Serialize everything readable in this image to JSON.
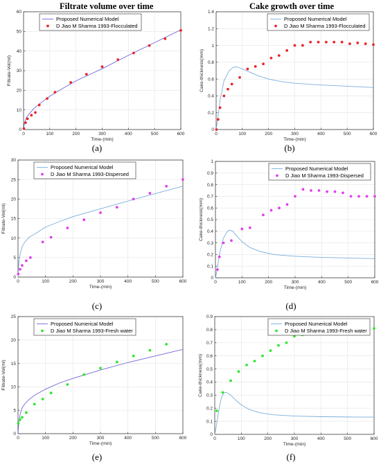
{
  "titles": {
    "left": "Filtrate volume over time",
    "right": "Cake growth over time"
  },
  "colors": {
    "model_line_blue": "#7aaedc",
    "model_line_purple": "#6f65d6",
    "flocculated": "#e8262b",
    "dispersed": "#e040ec",
    "fresh_water": "#2ee82e"
  },
  "chart_data": [
    {
      "id": "a",
      "type": "line",
      "caption": "(a)",
      "xlabel": "Time-(min)",
      "ylabel": "Filtrate-Vol(ml)",
      "xlim": [
        0,
        600
      ],
      "ylim": [
        0,
        60
      ],
      "xticks": [
        0,
        100,
        200,
        300,
        400,
        500,
        600
      ],
      "yticks": [
        0,
        10,
        20,
        30,
        40,
        50,
        60
      ],
      "legend": "top-left",
      "grid": true,
      "series": [
        {
          "name": "Proposed Numerical Model",
          "kind": "line",
          "color": "#6f65d6",
          "x": [
            0,
            3,
            10,
            20,
            40,
            60,
            100,
            150,
            200,
            300,
            400,
            500,
            600
          ],
          "y": [
            0,
            3.2,
            5.8,
            7.8,
            10.8,
            13.0,
            17.0,
            21.0,
            24.8,
            31.0,
            37.8,
            44.3,
            50.8
          ]
        },
        {
          "name": "D Jiao M Sharma 1993-Flocculated",
          "kind": "scatter",
          "color": "#e8262b",
          "x": [
            1,
            7.5,
            15,
            30,
            45,
            60,
            90,
            120,
            180,
            240,
            300,
            360,
            420,
            480,
            540,
            600
          ],
          "y": [
            0.5,
            3.5,
            5.5,
            7.3,
            8.7,
            12.5,
            15.8,
            19.0,
            24.0,
            28.2,
            32.0,
            35.6,
            39.0,
            42.8,
            46.3,
            50.5
          ]
        }
      ]
    },
    {
      "id": "b",
      "type": "line",
      "caption": "(b)",
      "xlabel": "Time-(min)",
      "ylabel": "Cake-thickness(mm)",
      "xlim": [
        0,
        600
      ],
      "ylim": [
        0,
        1.4
      ],
      "xticks": [
        0,
        100,
        200,
        300,
        400,
        500,
        600
      ],
      "yticks": [
        0,
        0.2,
        0.4,
        0.6,
        0.8,
        1,
        1.2,
        1.4
      ],
      "legend": "top-right",
      "grid": true,
      "series": [
        {
          "name": "Proposed Numerical Model",
          "kind": "line",
          "color": "#7aaedc",
          "x": [
            0,
            5,
            15,
            30,
            50,
            65,
            75,
            85,
            100,
            130,
            160,
            200,
            250,
            300,
            400,
            500,
            600
          ],
          "y": [
            0,
            0.1,
            0.35,
            0.58,
            0.7,
            0.74,
            0.745,
            0.74,
            0.72,
            0.68,
            0.64,
            0.6,
            0.57,
            0.55,
            0.53,
            0.515,
            0.5
          ]
        },
        {
          "name": "D Jiao M Sharma 1993-Flocculated",
          "kind": "scatter",
          "color": "#e8262b",
          "x": [
            1,
            7.5,
            15,
            30,
            45,
            60,
            90,
            120,
            150,
            180,
            210,
            240,
            270,
            300,
            330,
            360,
            390,
            420,
            450,
            480,
            510,
            540,
            570,
            600
          ],
          "y": [
            0.0,
            0.12,
            0.26,
            0.4,
            0.48,
            0.54,
            0.62,
            0.72,
            0.75,
            0.78,
            0.85,
            0.88,
            0.94,
            1.0,
            1.0,
            1.04,
            1.04,
            1.04,
            1.04,
            1.04,
            1.02,
            1.03,
            1.02,
            1.01
          ]
        }
      ]
    },
    {
      "id": "c",
      "type": "line",
      "caption": "(c)",
      "xlabel": "Time-(min)",
      "ylabel": "Filtrate-Vol(ml)",
      "xlim": [
        0,
        600
      ],
      "ylim": [
        0,
        30
      ],
      "xticks": [
        0,
        100,
        200,
        300,
        400,
        500,
        600
      ],
      "yticks": [
        0,
        5,
        10,
        15,
        20,
        25,
        30
      ],
      "legend": "top-left",
      "grid": true,
      "series": [
        {
          "name": "Proposed Numerical Model",
          "kind": "line",
          "color": "#7aaedc",
          "x": [
            0,
            3,
            8,
            15,
            25,
            40,
            60,
            100,
            150,
            200,
            300,
            400,
            500,
            600
          ],
          "y": [
            0,
            3.5,
            6.0,
            7.8,
            9.0,
            10.2,
            11.0,
            12.8,
            14.2,
            15.5,
            17.5,
            19.5,
            21.4,
            23.3
          ]
        },
        {
          "name": "D Jiao M Sharma 1993-Dispersed",
          "kind": "scatter",
          "color": "#e040ec",
          "x": [
            1,
            7.5,
            15,
            30,
            45,
            90,
            120,
            180,
            240,
            300,
            360,
            420,
            480,
            540,
            600
          ],
          "y": [
            0.8,
            2.0,
            3.0,
            4.2,
            5.0,
            9.0,
            10.2,
            12.6,
            14.7,
            16.5,
            17.9,
            20.0,
            21.5,
            23.3,
            25.0
          ]
        }
      ]
    },
    {
      "id": "d",
      "type": "line",
      "caption": "(d)",
      "xlabel": "Time-(min)",
      "ylabel": "Cake-thickness(mm)",
      "xlim": [
        0,
        600
      ],
      "ylim": [
        0,
        1
      ],
      "xticks": [
        0,
        100,
        200,
        300,
        400,
        500,
        600
      ],
      "yticks": [
        0,
        0.1,
        0.2,
        0.3,
        0.4,
        0.5,
        0.6,
        0.7,
        0.8,
        0.9,
        1
      ],
      "legend": "top-right",
      "grid": true,
      "series": [
        {
          "name": "Proposed Numerical Model",
          "kind": "line",
          "color": "#7aaedc",
          "x": [
            0,
            5,
            15,
            30,
            45,
            55,
            65,
            80,
            100,
            130,
            170,
            220,
            300,
            400,
            500,
            600
          ],
          "y": [
            0,
            0.05,
            0.2,
            0.34,
            0.4,
            0.41,
            0.4,
            0.36,
            0.31,
            0.26,
            0.225,
            0.2,
            0.185,
            0.175,
            0.17,
            0.165
          ]
        },
        {
          "name": "D Jiao M Sharma 1993-Dispersed",
          "kind": "scatter",
          "color": "#e040ec",
          "x": [
            7.5,
            15,
            30,
            60,
            100,
            130,
            180,
            210,
            240,
            270,
            300,
            330,
            360,
            390,
            420,
            450,
            480,
            510,
            540,
            570,
            600
          ],
          "y": [
            0.07,
            0.18,
            0.3,
            0.32,
            0.42,
            0.43,
            0.54,
            0.58,
            0.6,
            0.63,
            0.7,
            0.76,
            0.75,
            0.75,
            0.74,
            0.74,
            0.73,
            0.7,
            0.7,
            0.7,
            0.7
          ]
        }
      ]
    },
    {
      "id": "e",
      "type": "line",
      "caption": "(e)",
      "xlabel": "Time-(min)",
      "ylabel": "Filtrate-Vol(ml)",
      "xlim": [
        0,
        600
      ],
      "ylim": [
        0,
        25
      ],
      "xticks": [
        0,
        100,
        200,
        300,
        400,
        500,
        600
      ],
      "yticks": [
        0,
        5,
        10,
        15,
        20,
        25
      ],
      "legend": "top-left",
      "grid": true,
      "series": [
        {
          "name": "Proposed Numerical Model",
          "kind": "line",
          "color": "#6f65d6",
          "x": [
            0,
            3,
            8,
            15,
            25,
            40,
            60,
            100,
            150,
            200,
            300,
            400,
            500,
            600
          ],
          "y": [
            0,
            2.5,
            4.2,
            5.5,
            6.4,
            7.3,
            8.2,
            9.5,
            10.8,
            11.8,
            13.6,
            15.2,
            16.6,
            18.0
          ]
        },
        {
          "name": "D Jiao M Sharma 1993-Fresh water",
          "kind": "scatter",
          "color": "#2ee82e",
          "x": [
            1,
            7.5,
            15,
            30,
            60,
            90,
            120,
            180,
            240,
            300,
            360,
            420,
            480,
            540
          ],
          "y": [
            2.2,
            3.0,
            3.5,
            4.5,
            6.3,
            7.4,
            8.7,
            10.5,
            12.6,
            14.0,
            15.3,
            16.6,
            17.8,
            19.1
          ]
        }
      ]
    },
    {
      "id": "f",
      "type": "line",
      "caption": "(f)",
      "xlabel": "Time-(min)",
      "ylabel": "Cake-thickness(mm)",
      "xlim": [
        0,
        600
      ],
      "ylim": [
        0,
        0.9
      ],
      "xticks": [
        0,
        100,
        200,
        300,
        400,
        500,
        600
      ],
      "yticks": [
        0,
        0.1,
        0.2,
        0.3,
        0.4,
        0.5,
        0.6,
        0.7,
        0.8,
        0.9
      ],
      "legend": "top-right",
      "grid": true,
      "series": [
        {
          "name": "Proposed Numerical Model",
          "kind": "line",
          "color": "#7aaedc",
          "x": [
            0,
            5,
            15,
            25,
            35,
            45,
            60,
            80,
            100,
            130,
            170,
            220,
            300,
            400,
            500,
            600
          ],
          "y": [
            0,
            0.05,
            0.18,
            0.28,
            0.32,
            0.32,
            0.3,
            0.26,
            0.225,
            0.19,
            0.165,
            0.15,
            0.14,
            0.135,
            0.133,
            0.132
          ]
        },
        {
          "name": "D Jiao M Sharma 1993-Fresh water",
          "kind": "scatter",
          "color": "#2ee82e",
          "x": [
            7.5,
            30,
            60,
            90,
            120,
            150,
            180,
            210,
            240,
            270,
            300,
            330,
            360,
            390,
            420,
            450,
            480,
            510,
            540,
            570,
            600
          ],
          "y": [
            0.18,
            0.32,
            0.41,
            0.48,
            0.53,
            0.56,
            0.6,
            0.64,
            0.68,
            0.7,
            0.75,
            0.76,
            0.78,
            0.8,
            0.8,
            0.8,
            0.82,
            0.81,
            0.82,
            0.81,
            0.81
          ]
        }
      ]
    }
  ]
}
